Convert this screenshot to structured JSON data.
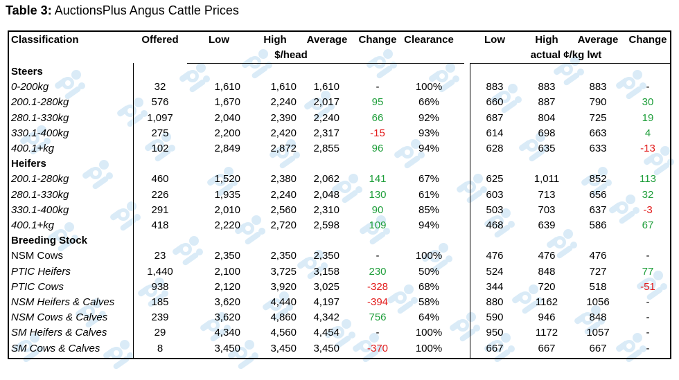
{
  "caption": {
    "prefix": "Table 3:",
    "title": "AuctionsPlus Angus Cattle Prices"
  },
  "headers": {
    "classification": "Classification",
    "offered": "Offered",
    "low": "Low",
    "high": "High",
    "average": "Average",
    "change": "Change",
    "clearance": "Clearance",
    "low2": "Low",
    "high2": "High",
    "average2": "Average",
    "change2": "Change",
    "unit_head": "$/head",
    "unit_kg": "actual ¢/kg lwt"
  },
  "groups": [
    "Steers",
    "Heifers",
    "Breeding Stock"
  ],
  "rows": [
    {
      "name": "0-200kg",
      "italic": true,
      "offered": "32",
      "low": "1,610",
      "high": "1,610",
      "average": "1,610",
      "change": "-",
      "change_sign": "none",
      "clearance": "100%",
      "low_c": "883",
      "high_c": "883",
      "average_c": "883",
      "change_c": "-",
      "change_c_sign": "none"
    },
    {
      "name": "200.1-280kg",
      "italic": true,
      "offered": "576",
      "low": "1,670",
      "high": "2,240",
      "average": "2,017",
      "change": "95",
      "change_sign": "pos",
      "clearance": "66%",
      "low_c": "660",
      "high_c": "887",
      "average_c": "790",
      "change_c": "30",
      "change_c_sign": "pos"
    },
    {
      "name": "280.1-330kg",
      "italic": true,
      "offered": "1,097",
      "low": "2,040",
      "high": "2,390",
      "average": "2,240",
      "change": "66",
      "change_sign": "pos",
      "clearance": "92%",
      "low_c": "687",
      "high_c": "804",
      "average_c": "725",
      "change_c": "19",
      "change_c_sign": "pos"
    },
    {
      "name": "330.1-400kg",
      "italic": true,
      "offered": "275",
      "low": "2,200",
      "high": "2,420",
      "average": "2,317",
      "change": "-15",
      "change_sign": "neg",
      "clearance": "93%",
      "low_c": "614",
      "high_c": "698",
      "average_c": "663",
      "change_c": "4",
      "change_c_sign": "pos"
    },
    {
      "name": "400.1+kg",
      "italic": true,
      "offered": "102",
      "low": "2,849",
      "high": "2,872",
      "average": "2,855",
      "change": "96",
      "change_sign": "pos",
      "clearance": "94%",
      "low_c": "628",
      "high_c": "635",
      "average_c": "633",
      "change_c": "-13",
      "change_c_sign": "neg"
    },
    {
      "name": "200.1-280kg",
      "italic": true,
      "offered": "460",
      "low": "1,520",
      "high": "2,380",
      "average": "2,062",
      "change": "141",
      "change_sign": "pos",
      "clearance": "67%",
      "low_c": "625",
      "high_c": "1,011",
      "average_c": "852",
      "change_c": "113",
      "change_c_sign": "pos"
    },
    {
      "name": "280.1-330kg",
      "italic": true,
      "offered": "226",
      "low": "1,935",
      "high": "2,240",
      "average": "2,048",
      "change": "130",
      "change_sign": "pos",
      "clearance": "61%",
      "low_c": "603",
      "high_c": "713",
      "average_c": "656",
      "change_c": "32",
      "change_c_sign": "pos"
    },
    {
      "name": "330.1-400kg",
      "italic": true,
      "offered": "291",
      "low": "2,010",
      "high": "2,560",
      "average": "2,310",
      "change": "90",
      "change_sign": "pos",
      "clearance": "85%",
      "low_c": "503",
      "high_c": "703",
      "average_c": "637",
      "change_c": "-3",
      "change_c_sign": "neg"
    },
    {
      "name": "400.1+kg",
      "italic": true,
      "offered": "418",
      "low": "2,220",
      "high": "2,720",
      "average": "2,598",
      "change": "109",
      "change_sign": "pos",
      "clearance": "94%",
      "low_c": "468",
      "high_c": "639",
      "average_c": "586",
      "change_c": "67",
      "change_c_sign": "pos"
    },
    {
      "name": "NSM Cows",
      "italic": false,
      "offered": "23",
      "low": "2,350",
      "high": "2,350",
      "average": "2,350",
      "change": "-",
      "change_sign": "none",
      "clearance": "100%",
      "low_c": "476",
      "high_c": "476",
      "average_c": "476",
      "change_c": "-",
      "change_c_sign": "none"
    },
    {
      "name": "PTIC Heifers",
      "italic": true,
      "offered": "1,440",
      "low": "2,100",
      "high": "3,725",
      "average": "3,158",
      "change": "230",
      "change_sign": "pos",
      "clearance": "50%",
      "low_c": "524",
      "high_c": "848",
      "average_c": "727",
      "change_c": "77",
      "change_c_sign": "pos"
    },
    {
      "name": "PTIC Cows",
      "italic": true,
      "offered": "938",
      "low": "2,120",
      "high": "3,920",
      "average": "3,025",
      "change": "-328",
      "change_sign": "neg",
      "clearance": "68%",
      "low_c": "344",
      "high_c": "720",
      "average_c": "518",
      "change_c": "-51",
      "change_c_sign": "neg"
    },
    {
      "name": "NSM Heifers & Calves",
      "italic": true,
      "offered": "185",
      "low": "3,620",
      "high": "4,440",
      "average": "4,197",
      "change": "-394",
      "change_sign": "neg",
      "clearance": "58%",
      "low_c": "880",
      "high_c": "1162",
      "average_c": "1056",
      "change_c": "-",
      "change_c_sign": "none"
    },
    {
      "name": "NSM Cows & Calves",
      "italic": true,
      "offered": "239",
      "low": "3,620",
      "high": "4,860",
      "average": "4,342",
      "change": "756",
      "change_sign": "pos",
      "clearance": "64%",
      "low_c": "590",
      "high_c": "946",
      "average_c": "848",
      "change_c": "-",
      "change_c_sign": "none"
    },
    {
      "name": "SM Heifers & Calves",
      "italic": true,
      "offered": "29",
      "low": "4,340",
      "high": "4,560",
      "average": "4,454",
      "change": "-",
      "change_sign": "none",
      "clearance": "100%",
      "low_c": "950",
      "high_c": "1172",
      "average_c": "1057",
      "change_c": "-",
      "change_c_sign": "none"
    },
    {
      "name": "SM Cows & Calves",
      "italic": true,
      "offered": "8",
      "low": "3,450",
      "high": "3,450",
      "average": "3,450",
      "change": "-370",
      "change_sign": "neg",
      "clearance": "100%",
      "low_c": "667",
      "high_c": "667",
      "average_c": "667",
      "change_c": "-",
      "change_c_sign": "none"
    }
  ],
  "colors": {
    "positive": "#1e9e3a",
    "negative": "#e21b1b",
    "watermark": "#bcdcf2"
  },
  "watermark_icon": "ausplus-logo-icon"
}
